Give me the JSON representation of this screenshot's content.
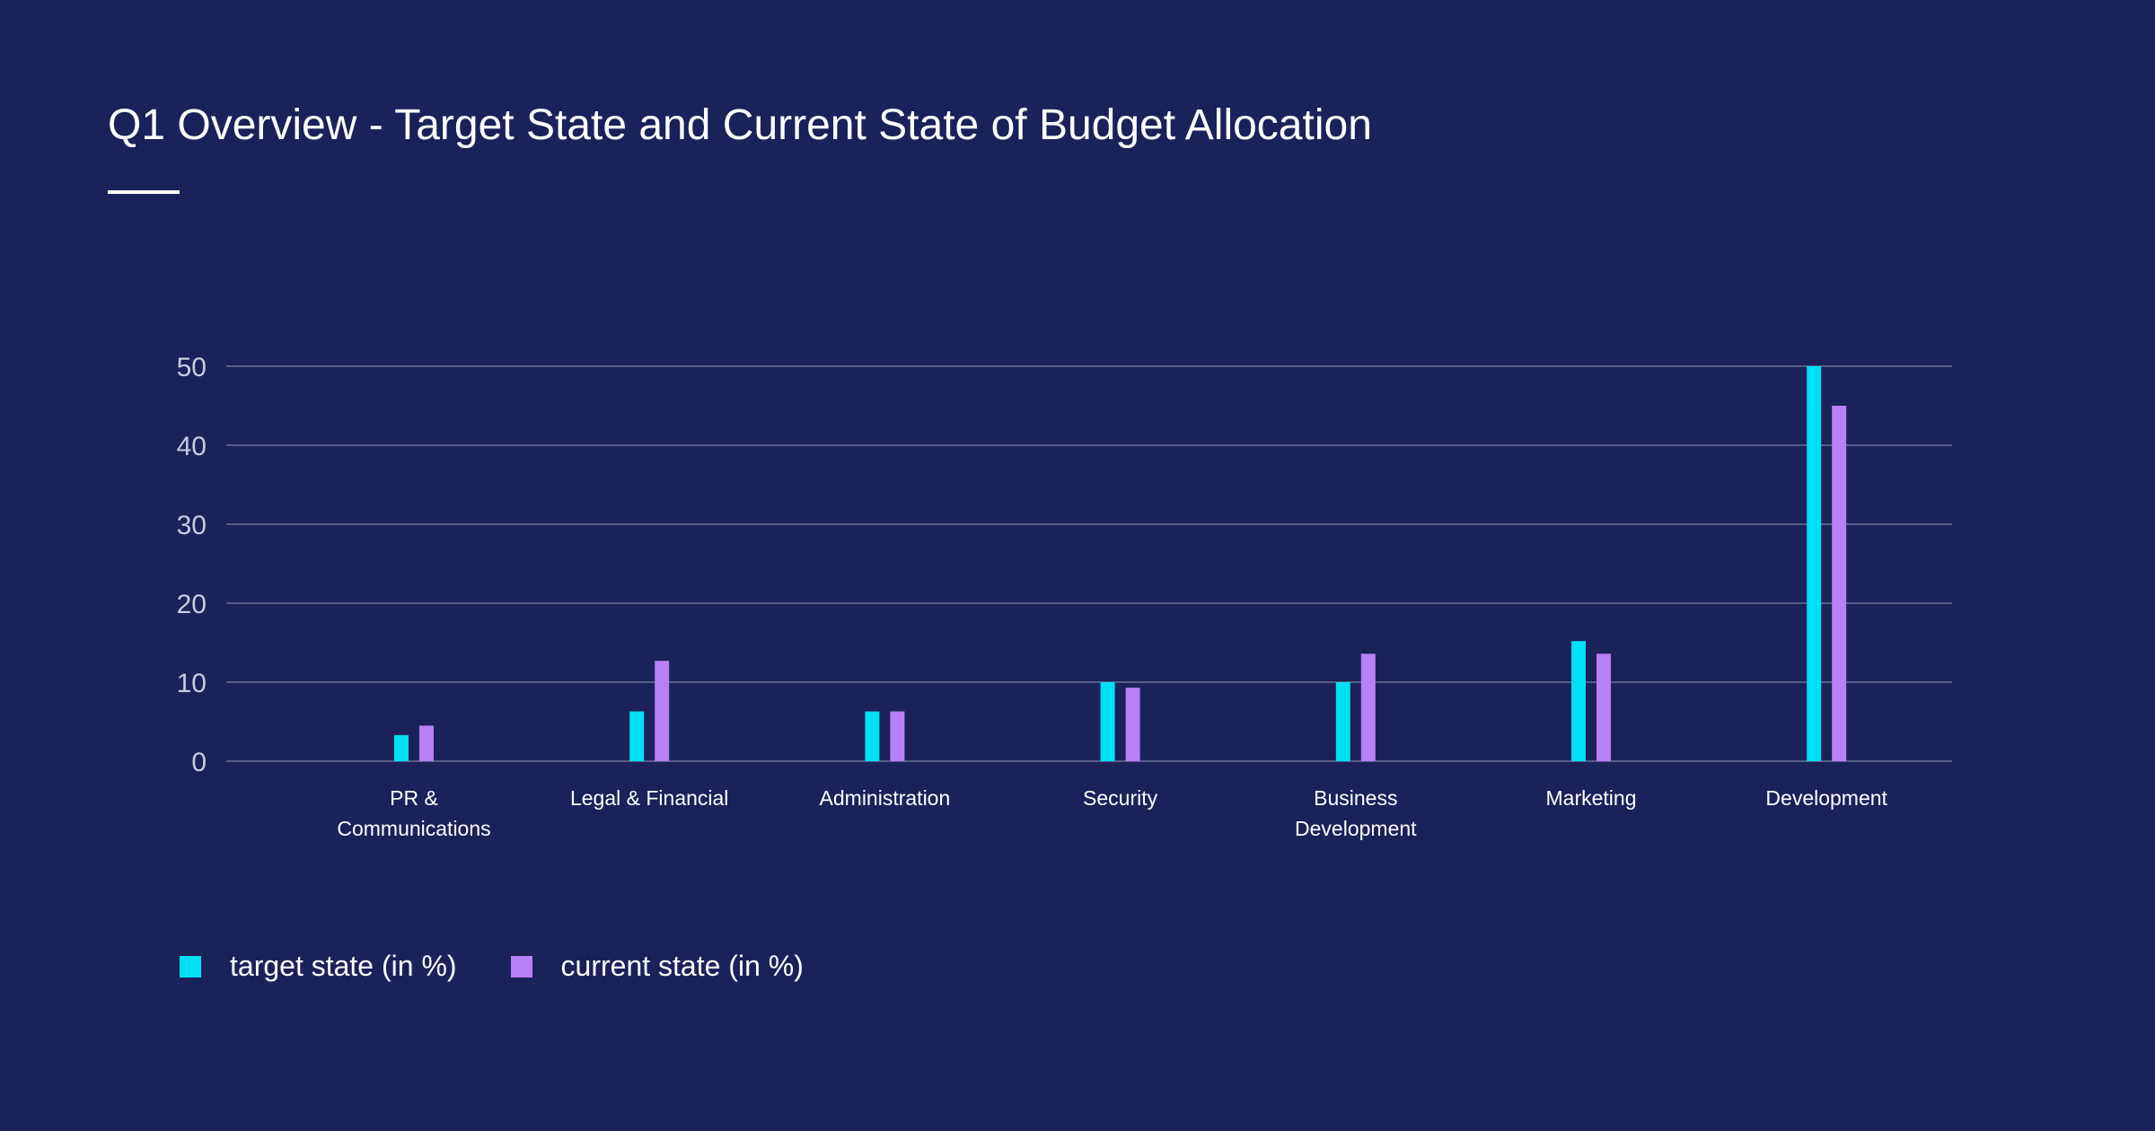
{
  "title": "Q1 Overview - Target State and Current State of Budget Allocation",
  "chart_data": {
    "type": "bar",
    "title": "Q1 Overview - Target State and Current State of Budget Allocation",
    "categories": [
      [
        "PR &",
        "Communications"
      ],
      [
        "Legal & Financial"
      ],
      [
        "Administration"
      ],
      [
        "Security"
      ],
      [
        "Business",
        "Development"
      ],
      [
        "Marketing"
      ],
      [
        "Development"
      ]
    ],
    "series": [
      {
        "name": "target state (in %)",
        "color": "#00e0f5",
        "values": [
          3.3,
          6.3,
          6.3,
          10,
          10,
          15.2,
          50
        ]
      },
      {
        "name": "current state (in %)",
        "color": "#b880f5",
        "values": [
          4.5,
          12.7,
          6.3,
          9.3,
          13.6,
          13.6,
          45
        ]
      }
    ],
    "y_ticks": [
      0,
      10,
      20,
      30,
      40,
      50
    ],
    "ylim": [
      0,
      50
    ],
    "grid": true,
    "legend_position": "bottom-left"
  }
}
